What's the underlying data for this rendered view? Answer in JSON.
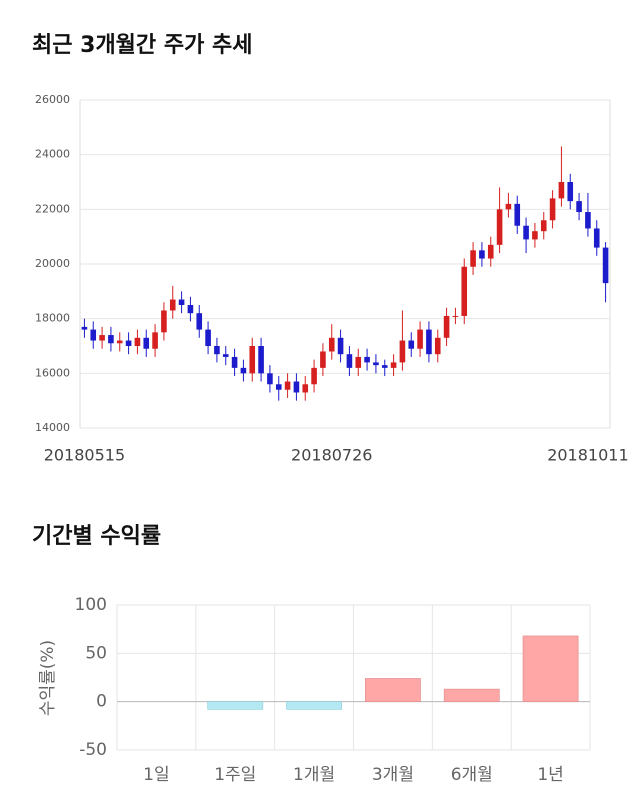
{
  "chart_data": [
    {
      "type": "candlestick",
      "title": "최근 3개월간 주가 추세",
      "categories": [
        "20180515",
        null,
        null,
        null,
        null,
        null,
        null,
        null,
        null,
        null,
        null,
        null,
        null,
        null,
        null,
        null,
        null,
        null,
        null,
        null,
        null,
        null,
        null,
        null,
        null,
        null,
        null,
        null,
        "20180726",
        null,
        null,
        null,
        null,
        null,
        null,
        null,
        null,
        null,
        null,
        null,
        null,
        null,
        null,
        null,
        null,
        null,
        null,
        null,
        null,
        null,
        null,
        null,
        null,
        null,
        null,
        null,
        null,
        "20181011",
        null,
        null
      ],
      "open": [
        17700,
        17600,
        17200,
        17400,
        17100,
        17200,
        17000,
        17300,
        16900,
        17500,
        18300,
        18700,
        18500,
        18200,
        17600,
        17000,
        16700,
        16600,
        16200,
        16000,
        17000,
        16000,
        15600,
        15400,
        15700,
        15300,
        15600,
        16200,
        16800,
        17300,
        16700,
        16200,
        16600,
        16400,
        16300,
        16200,
        16400,
        17200,
        16900,
        17600,
        16700,
        17300,
        18100,
        18100,
        19900,
        20500,
        20200,
        20700,
        22000,
        22200,
        21400,
        20900,
        21200,
        21600,
        22400,
        23000,
        22300,
        21900,
        21300,
        20600
      ],
      "high": [
        18000,
        17900,
        17700,
        17700,
        17500,
        17500,
        17600,
        17600,
        17800,
        18600,
        19200,
        19000,
        18800,
        18500,
        17900,
        17300,
        17000,
        16900,
        16500,
        17300,
        17300,
        16300,
        15900,
        16000,
        16000,
        15900,
        16500,
        17100,
        17800,
        17600,
        17000,
        16900,
        16900,
        16700,
        16500,
        16700,
        18300,
        17500,
        17900,
        17900,
        17600,
        18400,
        18400,
        20200,
        20800,
        20800,
        21000,
        22800,
        22600,
        22500,
        21700,
        21500,
        21900,
        22700,
        24300,
        23300,
        22600,
        22600,
        21600,
        20800
      ],
      "low": [
        17300,
        16900,
        16900,
        16800,
        16800,
        16700,
        16700,
        16600,
        16600,
        17200,
        18000,
        18200,
        17900,
        17300,
        16700,
        16400,
        16300,
        15900,
        15700,
        15700,
        15700,
        15300,
        15000,
        15100,
        15000,
        15000,
        15300,
        15900,
        16500,
        16400,
        15900,
        15900,
        16100,
        16000,
        15900,
        15900,
        16100,
        16600,
        16600,
        16400,
        16400,
        17000,
        17800,
        17800,
        19600,
        19900,
        19900,
        20400,
        21700,
        21100,
        20400,
        20600,
        20900,
        21300,
        22100,
        22000,
        21600,
        21000,
        20300,
        18600
      ],
      "close": [
        17600,
        17200,
        17400,
        17100,
        17200,
        17000,
        17300,
        16900,
        17500,
        18300,
        18700,
        18500,
        18200,
        17600,
        17000,
        16700,
        16600,
        16200,
        16000,
        17000,
        16000,
        15600,
        15400,
        15700,
        15300,
        15600,
        16200,
        16800,
        17300,
        16700,
        16200,
        16600,
        16400,
        16300,
        16200,
        16400,
        17200,
        16900,
        17600,
        16700,
        17300,
        18100,
        18100,
        19900,
        20500,
        20200,
        20700,
        22000,
        22200,
        21400,
        20900,
        21200,
        21600,
        22400,
        23000,
        22300,
        21900,
        21300,
        20600,
        19300
      ],
      "up_color": "#d61f1f",
      "down_color": "#1c1ccc",
      "ylim": [
        14000,
        26000
      ],
      "yticks": [
        14000,
        16000,
        18000,
        20000,
        22000,
        24000,
        26000
      ],
      "grid": true
    },
    {
      "type": "bar",
      "title": "기간별 수익률",
      "ylabel": "수익률(%)",
      "categories": [
        "1일",
        "1주일",
        "1개월",
        "3개월",
        "6개월",
        "1년"
      ],
      "values": [
        0,
        -8,
        -8,
        24,
        13,
        68
      ],
      "positive_color": "#ffa6a6",
      "negative_color": "#b4e8f2",
      "ylim": [
        -50,
        100
      ],
      "yticks": [
        -50,
        0,
        50,
        100
      ],
      "grid": true
    }
  ]
}
